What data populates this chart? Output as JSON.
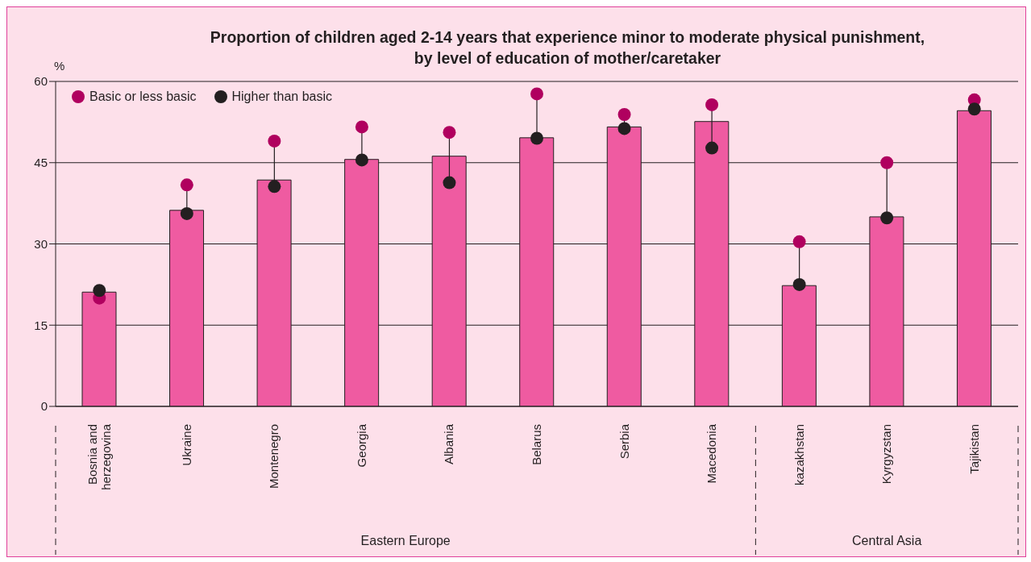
{
  "chart_data": {
    "type": "bar",
    "title": "Proportion of children aged 2-14 years that experience minor to moderate physical punishment, by level of education of mother/caretaker",
    "ylabel": "%",
    "categories": [
      "Bosnia and herzegovina",
      "Ukraine",
      "Montenegro",
      "Georgia",
      "Albania",
      "Belarus",
      "Serbia",
      "Macedonia",
      "kazakhstan",
      "Kyrgyzstan",
      "Tajikistan"
    ],
    "series": [
      {
        "color": "#ef5ba1",
        "values": [
          21.1,
          36.2,
          41.8,
          45.6,
          46.2,
          49.6,
          51.6,
          52.6,
          22.3,
          35.0,
          54.6
        ]
      },
      {
        "type": "scatter",
        "name": "Basic or less basic",
        "color": "#b0005f",
        "x": [
          "Bosnia and herzegovina",
          "Ukraine",
          "Montenegro",
          "Georgia",
          "Albania",
          "Belarus",
          "Serbia",
          "Macedonia",
          "kazakhstan",
          "Kyrgyzstan",
          "Tajikistan"
        ],
        "values": [
          20.0,
          40.9,
          49.0,
          51.6,
          50.6,
          57.7,
          53.9,
          55.7,
          30.4,
          45.0,
          56.6
        ]
      },
      {
        "type": "scatter",
        "name": "Higher than basic",
        "color": "#231f20",
        "x": [
          "Bosnia and herzegovina",
          "Ukraine",
          "Montenegro",
          "Georgia",
          "Albania",
          "Belarus",
          "Serbia",
          "Macedonia",
          "kazakhstan",
          "Kyrgyzstan",
          "Tajikistan"
        ],
        "values": [
          21.4,
          35.6,
          40.6,
          45.5,
          41.3,
          49.5,
          51.3,
          47.7,
          22.5,
          34.8,
          54.9
        ]
      }
    ],
    "ylim": [
      0,
      60
    ],
    "yticks": [
      0,
      15,
      30,
      45,
      60
    ],
    "grid": "y",
    "legend": "top left",
    "marker": "circle",
    "annotations": [
      "Eastern Europe",
      "Central Asia"
    ]
  }
}
